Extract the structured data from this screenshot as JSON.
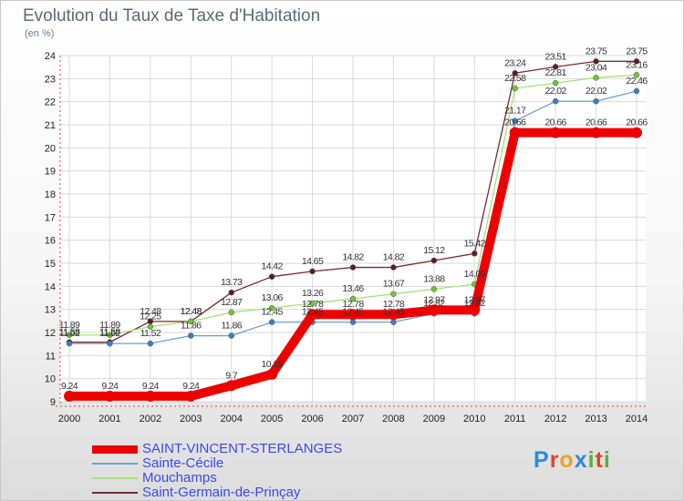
{
  "title": "Evolution du Taux de Taxe d'Habitation",
  "subtitle": "(en %)",
  "logo": {
    "letters": [
      {
        "ch": "P",
        "color": "#2a8ad8"
      },
      {
        "ch": "r",
        "color": "#e0452a"
      },
      {
        "ch": "o",
        "color": "#f0a020"
      },
      {
        "ch": "x",
        "color": "#2a8ad8"
      },
      {
        "ch": "i",
        "color": "#5ab030"
      },
      {
        "ch": "t",
        "color": "#e0452a"
      },
      {
        "ch": "i",
        "color": "#5ab030"
      }
    ]
  },
  "chart_data": {
    "type": "line",
    "title": "Evolution du Taux de Taxe d'Habitation",
    "ylabel": "(en %)",
    "xlabel": "",
    "x": [
      "2000",
      "2001",
      "2002",
      "2003",
      "2004",
      "2005",
      "2006",
      "2007",
      "2008",
      "2009",
      "2010",
      "2011",
      "2012",
      "2013",
      "2014"
    ],
    "ylim": [
      9,
      24
    ],
    "yticks": [
      9,
      10,
      11,
      12,
      13,
      14,
      15,
      16,
      17,
      18,
      19,
      20,
      21,
      22,
      23,
      24
    ],
    "grid": true,
    "legend_position": "bottom-left",
    "series": [
      {
        "name": "Saint-Germain-de-Prinçay",
        "color": "#7a2a30",
        "marker_color": "#5a1e22",
        "values": [
          11.58,
          11.58,
          12.48,
          12.48,
          13.73,
          14.42,
          14.65,
          14.82,
          14.82,
          15.12,
          15.42,
          23.24,
          23.51,
          23.75,
          23.75
        ],
        "labels": [
          "11.58",
          "11.58",
          "12.48",
          "12.48",
          "13.73",
          "14.42",
          "14.65",
          "14.82",
          "14.82",
          "15.12",
          "15.42",
          "23.24",
          "23.51",
          "23.75",
          "23.75"
        ]
      },
      {
        "name": "Mouchamps",
        "color": "#a8e07a",
        "marker_color": "#6cc830",
        "values": [
          11.89,
          11.89,
          12.25,
          12.48,
          12.87,
          13.06,
          13.26,
          13.46,
          13.67,
          13.88,
          14.09,
          22.58,
          22.81,
          23.04,
          23.16
        ],
        "labels": [
          "11.89",
          "11.89",
          "12.25",
          "12.48",
          "12.87",
          "13.06",
          "13.26",
          "13.46",
          "13.67",
          "13.88",
          "14.09",
          "22.58",
          "22.81",
          "23.04",
          "23.16"
        ]
      },
      {
        "name": "Sainte-Cécile",
        "color": "#6aa0d0",
        "marker_color": "#3a80c0",
        "values": [
          11.52,
          11.52,
          11.52,
          11.86,
          11.86,
          12.45,
          12.45,
          12.45,
          12.45,
          12.82,
          12.82,
          21.17,
          22.02,
          22.02,
          22.46
        ],
        "labels": [
          "11.52",
          "11.52",
          "11.52",
          "11.86",
          "11.86",
          "12.45",
          "12.45",
          "12.45",
          "12.45",
          "12.82",
          "12.82",
          "21.17",
          "22.02",
          "22.02",
          "22.46"
        ]
      },
      {
        "name": "SAINT-VINCENT-STERLANGES",
        "color": "#ee0000",
        "marker_color": "#ee0000",
        "values": [
          9.24,
          9.24,
          9.24,
          9.24,
          9.7,
          10.19,
          12.78,
          12.78,
          12.78,
          12.97,
          12.97,
          20.66,
          20.66,
          20.66,
          20.66
        ],
        "labels": [
          "9.24",
          "9.24",
          "9.24",
          "9.24",
          "9.7",
          "10.19",
          "12.78",
          "12.78",
          "12.78",
          "12.97",
          "12.97",
          "20.66",
          "20.66",
          "20.66",
          "20.66"
        ]
      }
    ],
    "legend_order": [
      "SAINT-VINCENT-STERLANGES",
      "Sainte-Cécile",
      "Mouchamps",
      "Saint-Germain-de-Prinçay"
    ]
  }
}
